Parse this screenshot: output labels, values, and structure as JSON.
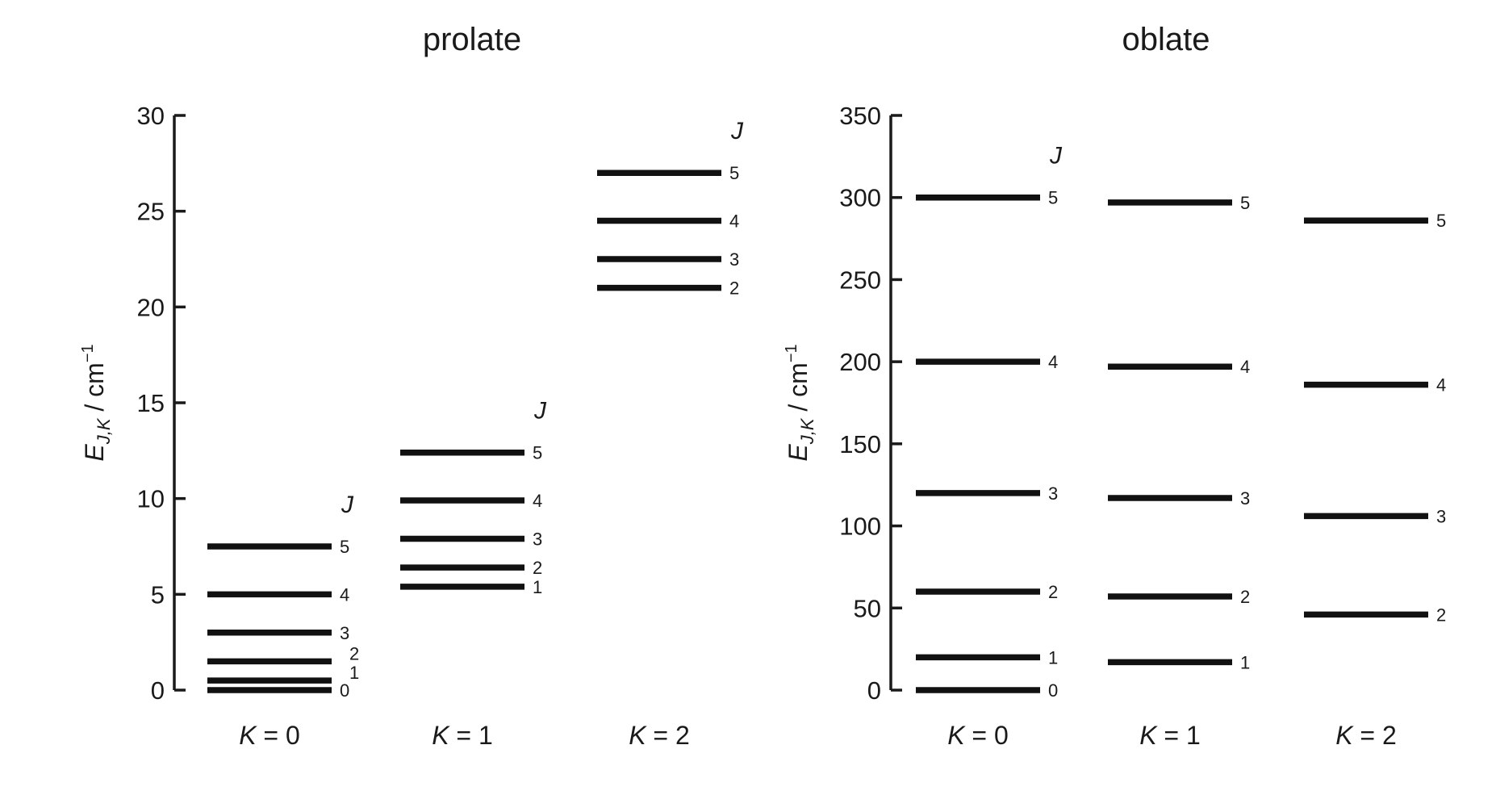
{
  "chart_data": [
    {
      "type": "energy-level-diagram",
      "title": "prolate",
      "ylabel": "E_{J,K} / cm^-1",
      "ylim": [
        0,
        30
      ],
      "yticks": [
        0,
        5,
        10,
        15,
        20,
        25,
        30
      ],
      "j_header": "J",
      "columns": [
        {
          "label": "K = 0",
          "k": "0",
          "levels": [
            {
              "j": "0",
              "energy": 0
            },
            {
              "j": "1",
              "energy": 0.5
            },
            {
              "j": "2",
              "energy": 1.5
            },
            {
              "j": "3",
              "energy": 3
            },
            {
              "j": "4",
              "energy": 5
            },
            {
              "j": "5",
              "energy": 7.5
            }
          ]
        },
        {
          "label": "K = 1",
          "k": "1",
          "levels": [
            {
              "j": "1",
              "energy": 5.4
            },
            {
              "j": "2",
              "energy": 6.4
            },
            {
              "j": "3",
              "energy": 7.9
            },
            {
              "j": "4",
              "energy": 9.9
            },
            {
              "j": "5",
              "energy": 12.4
            }
          ]
        },
        {
          "label": "K = 2",
          "k": "2",
          "levels": [
            {
              "j": "2",
              "energy": 21
            },
            {
              "j": "3",
              "energy": 22.5
            },
            {
              "j": "4",
              "energy": 24.5
            },
            {
              "j": "5",
              "energy": 27
            }
          ]
        }
      ]
    },
    {
      "type": "energy-level-diagram",
      "title": "oblate",
      "ylabel": "E_{J,K} / cm^-1",
      "ylim": [
        0,
        350
      ],
      "yticks": [
        0,
        50,
        100,
        150,
        200,
        250,
        300,
        350
      ],
      "j_header": "J",
      "columns": [
        {
          "label": "K = 0",
          "k": "0",
          "levels": [
            {
              "j": "0",
              "energy": 0
            },
            {
              "j": "1",
              "energy": 20
            },
            {
              "j": "2",
              "energy": 60
            },
            {
              "j": "3",
              "energy": 120
            },
            {
              "j": "4",
              "energy": 200
            },
            {
              "j": "5",
              "energy": 300
            }
          ]
        },
        {
          "label": "K = 1",
          "k": "1",
          "levels": [
            {
              "j": "1",
              "energy": 17
            },
            {
              "j": "2",
              "energy": 57
            },
            {
              "j": "3",
              "energy": 117
            },
            {
              "j": "4",
              "energy": 197
            },
            {
              "j": "5",
              "energy": 297
            }
          ]
        },
        {
          "label": "K = 2",
          "k": "2",
          "levels": [
            {
              "j": "2",
              "energy": 46
            },
            {
              "j": "3",
              "energy": 106
            },
            {
              "j": "4",
              "energy": 186
            },
            {
              "j": "5",
              "energy": 286
            }
          ]
        }
      ]
    }
  ]
}
